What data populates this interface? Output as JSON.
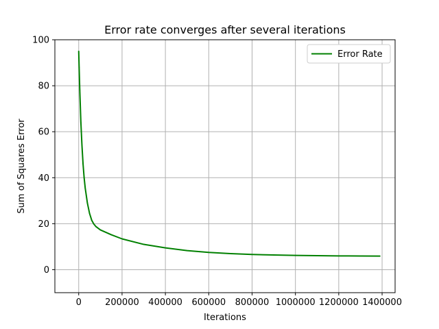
{
  "chart_data": {
    "type": "line",
    "title": "Error rate converges after several iterations",
    "xlabel": "Iterations",
    "ylabel": "Sum of Squares Error",
    "xlim": [
      -110000,
      1460000
    ],
    "ylim": [
      -10,
      100
    ],
    "xticks": [
      0,
      200000,
      400000,
      600000,
      800000,
      1000000,
      1200000,
      1400000
    ],
    "yticks": [
      0,
      20,
      40,
      60,
      80,
      100
    ],
    "grid": true,
    "legend_position": "top-right",
    "series": [
      {
        "name": "Error Rate",
        "color": "#008000",
        "x": [
          0,
          2000,
          5000,
          10000,
          15000,
          20000,
          25000,
          30000,
          40000,
          50000,
          60000,
          70000,
          80000,
          100000,
          150000,
          200000,
          300000,
          400000,
          500000,
          600000,
          700000,
          800000,
          900000,
          1000000,
          1100000,
          1200000,
          1300000,
          1390000
        ],
        "y": [
          95,
          88,
          78,
          64,
          54,
          46,
          40,
          35.5,
          29,
          24.5,
          21.5,
          19.8,
          18.7,
          17.3,
          15.2,
          13.4,
          11,
          9.5,
          8.3,
          7.5,
          7,
          6.6,
          6.4,
          6.2,
          6.1,
          6,
          5.95,
          5.9
        ]
      }
    ]
  }
}
